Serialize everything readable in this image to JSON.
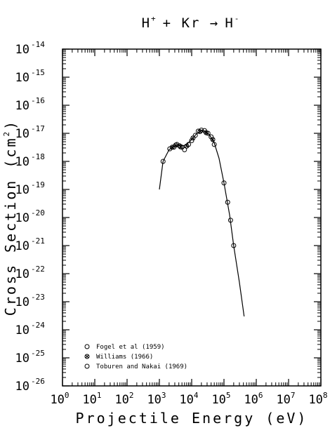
{
  "chart_data": {
    "type": "scatter",
    "title": "H+ + Kr → H-",
    "title_parts": {
      "lead": "H",
      "lead_sup": "+",
      "mid": "+ Kr →",
      "trail": "H",
      "trail_sup": "-"
    },
    "xlabel": "Projectile Energy (eV)",
    "ylabel_base": "Cross Section (cm",
    "ylabel_sup": "2",
    "ylabel_end": ")",
    "xscale": "log",
    "yscale": "log",
    "xlim": [
      1,
      100000000
    ],
    "ylim": [
      1e-26,
      1e-14
    ],
    "x_ticks": [
      {
        "base": "10",
        "exp": "0",
        "value": 1
      },
      {
        "base": "10",
        "exp": "1",
        "value": 10
      },
      {
        "base": "10",
        "exp": "2",
        "value": 100
      },
      {
        "base": "10",
        "exp": "3",
        "value": 1000
      },
      {
        "base": "10",
        "exp": "4",
        "value": 10000
      },
      {
        "base": "10",
        "exp": "5",
        "value": 100000
      },
      {
        "base": "10",
        "exp": "6",
        "value": 1000000
      },
      {
        "base": "10",
        "exp": "7",
        "value": 10000000
      },
      {
        "base": "10",
        "exp": "8",
        "value": 100000000
      }
    ],
    "y_ticks": [
      {
        "base": "10",
        "exp": "-14",
        "value": 1e-14
      },
      {
        "base": "10",
        "exp": "-15",
        "value": 1e-15
      },
      {
        "base": "10",
        "exp": "-16",
        "value": 1e-16
      },
      {
        "base": "10",
        "exp": "-17",
        "value": 1e-17
      },
      {
        "base": "10",
        "exp": "-18",
        "value": 1e-18
      },
      {
        "base": "10",
        "exp": "-19",
        "value": 1e-19
      },
      {
        "base": "10",
        "exp": "-20",
        "value": 1e-20
      },
      {
        "base": "10",
        "exp": "-21",
        "value": 1e-21
      },
      {
        "base": "10",
        "exp": "-22",
        "value": 1e-22
      },
      {
        "base": "10",
        "exp": "-23",
        "value": 1e-23
      },
      {
        "base": "10",
        "exp": "-24",
        "value": 1e-24
      },
      {
        "base": "10",
        "exp": "-25",
        "value": 1e-25
      },
      {
        "base": "10",
        "exp": "-26",
        "value": 1e-26
      }
    ],
    "grid": false,
    "legend_position": "bottom-left",
    "series": [
      {
        "name": "Fogel et al (1959)",
        "marker": "circle",
        "points": [
          [
            2100,
            2.8e-18
          ],
          [
            2800,
            3.2e-18
          ],
          [
            3500,
            4e-18
          ],
          [
            4200,
            3.6e-18
          ],
          [
            5000,
            3.2e-18
          ],
          [
            6000,
            2.6e-18
          ],
          [
            8000,
            4e-18
          ],
          [
            10000,
            5.5e-18
          ],
          [
            13000,
            8.5e-18
          ],
          [
            16000,
            1.2e-17
          ],
          [
            20000,
            1.3e-17
          ],
          [
            25000,
            1.25e-17
          ],
          [
            32000,
            1e-17
          ],
          [
            40000,
            7.5e-18
          ],
          [
            50000,
            4e-18
          ]
        ]
      },
      {
        "name": "Williams (1966)",
        "marker": "circle-x",
        "points": [
          [
            2500,
            3.2e-18
          ],
          [
            3200,
            3.8e-18
          ],
          [
            4500,
            3.3e-18
          ],
          [
            7000,
            3.5e-18
          ],
          [
            11000,
            6.8e-18
          ],
          [
            18000,
            1.15e-17
          ],
          [
            28000,
            1.05e-17
          ],
          [
            45000,
            6e-18
          ]
        ]
      },
      {
        "name": "Toburen and Nakai (1969)",
        "marker": "circle",
        "points": [
          [
            1300,
            1e-18
          ],
          [
            100000,
            1.7e-19
          ],
          [
            130000,
            3.5e-20
          ],
          [
            160000,
            8e-21
          ],
          [
            200000,
            1e-21
          ]
        ]
      }
    ],
    "fit_curve": [
      [
        1000,
        1e-19
      ],
      [
        1300,
        1e-18
      ],
      [
        2000,
        2.6e-18
      ],
      [
        3000,
        3.5e-18
      ],
      [
        4000,
        3.9e-18
      ],
      [
        5500,
        3.6e-18
      ],
      [
        7000,
        4e-18
      ],
      [
        10000,
        6e-18
      ],
      [
        14000,
        9.5e-18
      ],
      [
        20000,
        1.25e-17
      ],
      [
        26000,
        1.2e-17
      ],
      [
        35000,
        9e-18
      ],
      [
        50000,
        4.5e-18
      ],
      [
        70000,
        1.3e-18
      ],
      [
        100000,
        1.7e-19
      ],
      [
        150000,
        1.2e-20
      ],
      [
        200000,
        1e-21
      ],
      [
        300000,
        5e-23
      ],
      [
        420000,
        3e-24
      ]
    ]
  }
}
